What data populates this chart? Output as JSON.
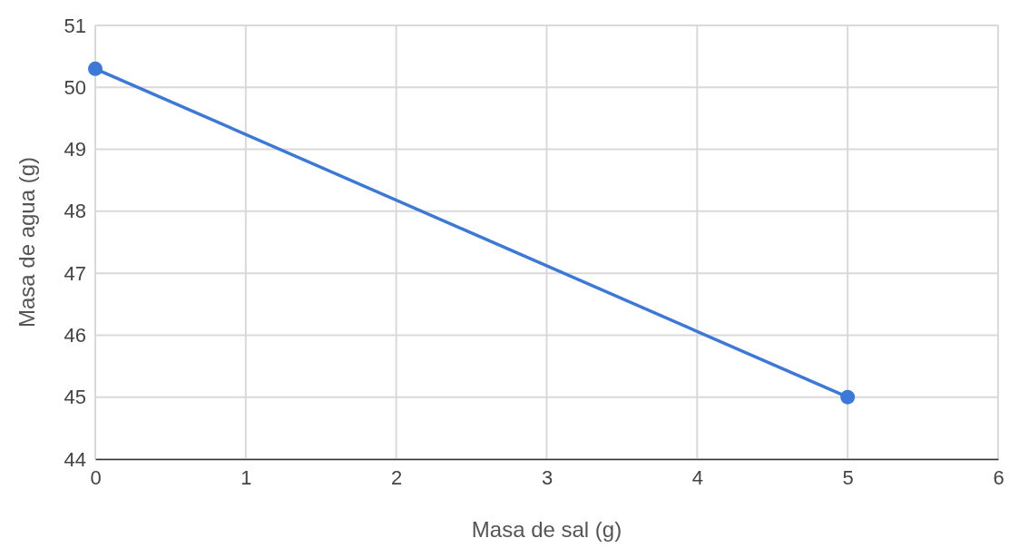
{
  "chart_data": {
    "type": "line",
    "xlabel": "Masa de sal (g)",
    "ylabel": "Masa de agua (g)",
    "x": [
      0,
      5
    ],
    "series": [
      {
        "color": "#3c78d8",
        "values": [
          50.3,
          45
        ]
      }
    ],
    "xlim": [
      0,
      6
    ],
    "xticks": [
      0,
      1,
      2,
      3,
      4,
      5,
      6
    ],
    "ylim": [
      44,
      51
    ],
    "yticks": [
      44,
      45,
      46,
      47,
      48,
      49,
      50,
      51
    ],
    "grid": true,
    "marker": "circle",
    "line_style": "solid"
  }
}
